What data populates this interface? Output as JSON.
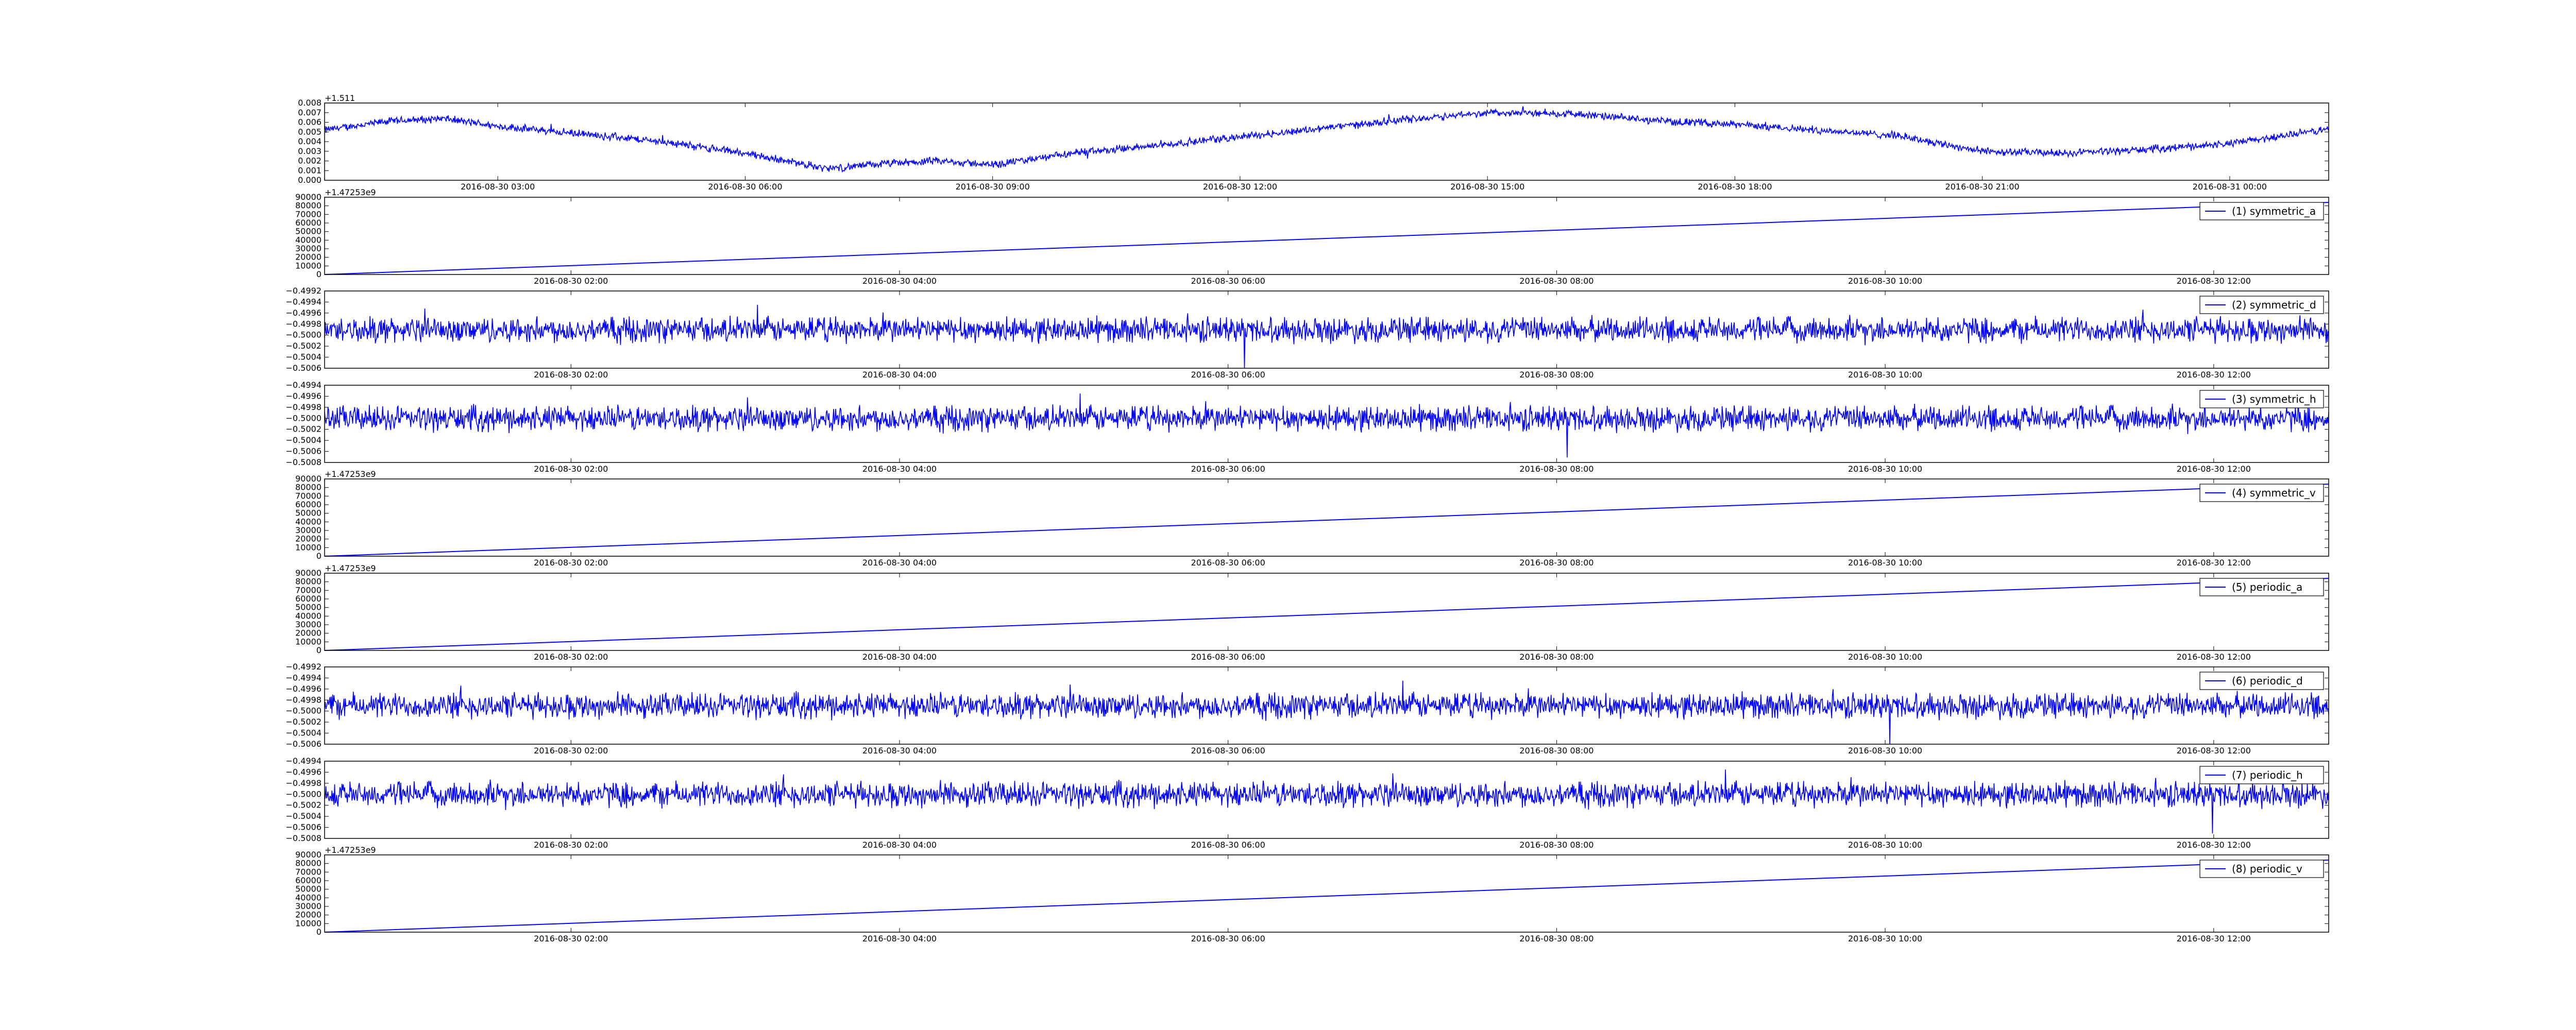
{
  "figure": {
    "background": "#ffffff"
  },
  "chart_data": [
    {
      "type": "line",
      "title": "",
      "offset_text": "+1.511",
      "legend": null,
      "series_color": "#0000ff",
      "x_ticks": [
        "2016-08-30 03:00",
        "2016-08-30 06:00",
        "2016-08-30 09:00",
        "2016-08-30 12:00",
        "2016-08-30 15:00",
        "2016-08-30 18:00",
        "2016-08-30 21:00",
        "2016-08-31 00:00"
      ],
      "xlim": [
        "2016-08-30 00:54",
        "2016-08-31 01:12"
      ],
      "y_ticks": [
        "0.000",
        "0.001",
        "0.002",
        "0.003",
        "0.004",
        "0.005",
        "0.006",
        "0.007",
        "0.008"
      ],
      "ylim": [
        0.0,
        0.008
      ],
      "noise": 0.00035,
      "series": [
        {
          "name": "",
          "x": [
            "2016-08-30 00:54",
            "2016-08-30 01:40",
            "2016-08-30 02:20",
            "2016-08-30 03:00",
            "2016-08-30 04:00",
            "2016-08-30 05:00",
            "2016-08-30 06:00",
            "2016-08-30 07:00",
            "2016-08-30 07:40",
            "2016-08-30 08:20",
            "2016-08-30 09:00",
            "2016-08-30 10:00",
            "2016-08-30 11:00",
            "2016-08-30 12:00",
            "2016-08-30 13:00",
            "2016-08-30 14:00",
            "2016-08-30 15:00",
            "2016-08-30 16:00",
            "2016-08-30 17:00",
            "2016-08-30 18:00",
            "2016-08-30 19:00",
            "2016-08-30 20:00",
            "2016-08-30 21:00",
            "2016-08-30 22:00",
            "2016-08-30 23:00",
            "2016-08-31 00:00",
            "2016-08-31 01:12"
          ],
          "y": [
            0.0052,
            0.0061,
            0.0064,
            0.0056,
            0.0048,
            0.004,
            0.0028,
            0.0012,
            0.0017,
            0.002,
            0.0016,
            0.0028,
            0.0036,
            0.0045,
            0.0054,
            0.0063,
            0.007,
            0.0069,
            0.0062,
            0.0058,
            0.0052,
            0.0046,
            0.003,
            0.0028,
            0.0032,
            0.0038,
            0.0053
          ]
        }
      ]
    },
    {
      "type": "line",
      "title": "",
      "offset_text": "+1.47253e9",
      "legend": "(1) symmetric_a",
      "series_color": "#0000ff",
      "x_ticks": [
        "2016-08-30 02:00",
        "2016-08-30 04:00",
        "2016-08-30 06:00",
        "2016-08-30 08:00",
        "2016-08-30 10:00",
        "2016-08-30 12:00"
      ],
      "xlim": [
        "2016-08-30 00:30",
        "2016-08-30 12:42"
      ],
      "y_ticks": [
        "0",
        "10000",
        "20000",
        "30000",
        "40000",
        "50000",
        "60000",
        "70000",
        "80000",
        "90000"
      ],
      "ylim": [
        0,
        90000
      ],
      "noise": 0,
      "series": [
        {
          "name": "(1) symmetric_a",
          "x": [
            "2016-08-30 00:30",
            "2016-08-30 12:42"
          ],
          "y": [
            0,
            84000
          ]
        }
      ]
    },
    {
      "type": "line",
      "title": "",
      "offset_text": "",
      "legend": "(2) symmetric_d",
      "series_color": "#0000ff",
      "x_ticks": [
        "2016-08-30 02:00",
        "2016-08-30 04:00",
        "2016-08-30 06:00",
        "2016-08-30 08:00",
        "2016-08-30 10:00",
        "2016-08-30 12:00"
      ],
      "xlim": [
        "2016-08-30 00:30",
        "2016-08-30 12:42"
      ],
      "y_ticks": [
        "−0.5006",
        "−0.5004",
        "−0.5002",
        "−0.5000",
        "−0.4998",
        "−0.4996",
        "−0.4994",
        "−0.4992"
      ],
      "ylim": [
        -0.5006,
        -0.4992
      ],
      "noise": 0.0002,
      "series": [
        {
          "name": "(2) symmetric_d",
          "x": [
            "2016-08-30 00:30",
            "2016-08-30 12:42"
          ],
          "y": [
            -0.4999,
            -0.4999
          ]
        }
      ]
    },
    {
      "type": "line",
      "title": "",
      "offset_text": "",
      "legend": "(3) symmetric_h",
      "series_color": "#0000ff",
      "x_ticks": [
        "2016-08-30 02:00",
        "2016-08-30 04:00",
        "2016-08-30 06:00",
        "2016-08-30 08:00",
        "2016-08-30 10:00",
        "2016-08-30 12:00"
      ],
      "xlim": [
        "2016-08-30 00:30",
        "2016-08-30 12:42"
      ],
      "y_ticks": [
        "−0.5008",
        "−0.5006",
        "−0.5004",
        "−0.5002",
        "−0.5000",
        "−0.4998",
        "−0.4996",
        "−0.4994"
      ],
      "ylim": [
        -0.5008,
        -0.4994
      ],
      "noise": 0.0002,
      "series": [
        {
          "name": "(3) symmetric_h",
          "x": [
            "2016-08-30 00:30",
            "2016-08-30 12:42"
          ],
          "y": [
            -0.5,
            -0.5
          ]
        }
      ]
    },
    {
      "type": "line",
      "title": "",
      "offset_text": "+1.47253e9",
      "legend": "(4) symmetric_v",
      "series_color": "#0000ff",
      "x_ticks": [
        "2016-08-30 02:00",
        "2016-08-30 04:00",
        "2016-08-30 06:00",
        "2016-08-30 08:00",
        "2016-08-30 10:00",
        "2016-08-30 12:00"
      ],
      "xlim": [
        "2016-08-30 00:30",
        "2016-08-30 12:42"
      ],
      "y_ticks": [
        "0",
        "10000",
        "20000",
        "30000",
        "40000",
        "50000",
        "60000",
        "70000",
        "80000",
        "90000"
      ],
      "ylim": [
        0,
        90000
      ],
      "noise": 0,
      "series": [
        {
          "name": "(4) symmetric_v",
          "x": [
            "2016-08-30 00:30",
            "2016-08-30 12:42"
          ],
          "y": [
            0,
            84000
          ]
        }
      ]
    },
    {
      "type": "line",
      "title": "",
      "offset_text": "+1.47253e9",
      "legend": "(5) periodic_a",
      "series_color": "#0000ff",
      "x_ticks": [
        "2016-08-30 02:00",
        "2016-08-30 04:00",
        "2016-08-30 06:00",
        "2016-08-30 08:00",
        "2016-08-30 10:00",
        "2016-08-30 12:00"
      ],
      "xlim": [
        "2016-08-30 00:30",
        "2016-08-30 12:42"
      ],
      "y_ticks": [
        "0",
        "10000",
        "20000",
        "30000",
        "40000",
        "50000",
        "60000",
        "70000",
        "80000",
        "90000"
      ],
      "ylim": [
        0,
        90000
      ],
      "noise": 0,
      "series": [
        {
          "name": "(5) periodic_a",
          "x": [
            "2016-08-30 00:30",
            "2016-08-30 12:42"
          ],
          "y": [
            0,
            84000
          ]
        }
      ]
    },
    {
      "type": "line",
      "title": "",
      "offset_text": "",
      "legend": "(6) periodic_d",
      "series_color": "#0000ff",
      "x_ticks": [
        "2016-08-30 02:00",
        "2016-08-30 04:00",
        "2016-08-30 06:00",
        "2016-08-30 08:00",
        "2016-08-30 10:00",
        "2016-08-30 12:00"
      ],
      "xlim": [
        "2016-08-30 00:30",
        "2016-08-30 12:42"
      ],
      "y_ticks": [
        "−0.5006",
        "−0.5004",
        "−0.5002",
        "−0.5000",
        "−0.4998",
        "−0.4996",
        "−0.4994",
        "−0.4992"
      ],
      "ylim": [
        -0.5006,
        -0.4992
      ],
      "noise": 0.0002,
      "series": [
        {
          "name": "(6) periodic_d",
          "x": [
            "2016-08-30 00:30",
            "2016-08-30 12:42"
          ],
          "y": [
            -0.4999,
            -0.4999
          ]
        }
      ]
    },
    {
      "type": "line",
      "title": "",
      "offset_text": "",
      "legend": "(7) periodic_h",
      "series_color": "#0000ff",
      "x_ticks": [
        "2016-08-30 02:00",
        "2016-08-30 04:00",
        "2016-08-30 06:00",
        "2016-08-30 08:00",
        "2016-08-30 10:00",
        "2016-08-30 12:00"
      ],
      "xlim": [
        "2016-08-30 00:30",
        "2016-08-30 12:42"
      ],
      "y_ticks": [
        "−0.5008",
        "−0.5006",
        "−0.5004",
        "−0.5002",
        "−0.5000",
        "−0.4998",
        "−0.4996",
        "−0.4994"
      ],
      "ylim": [
        -0.5008,
        -0.4994
      ],
      "noise": 0.0002,
      "series": [
        {
          "name": "(7) periodic_h",
          "x": [
            "2016-08-30 00:30",
            "2016-08-30 12:42"
          ],
          "y": [
            -0.5,
            -0.5
          ]
        }
      ]
    },
    {
      "type": "line",
      "title": "",
      "offset_text": "+1.47253e9",
      "legend": "(8) periodic_v",
      "series_color": "#0000ff",
      "x_ticks": [
        "2016-08-30 02:00",
        "2016-08-30 04:00",
        "2016-08-30 06:00",
        "2016-08-30 08:00",
        "2016-08-30 10:00",
        "2016-08-30 12:00"
      ],
      "xlim": [
        "2016-08-30 00:30",
        "2016-08-30 12:42"
      ],
      "y_ticks": [
        "0",
        "10000",
        "20000",
        "30000",
        "40000",
        "50000",
        "60000",
        "70000",
        "80000",
        "90000"
      ],
      "ylim": [
        0,
        90000
      ],
      "noise": 0,
      "series": [
        {
          "name": "(8) periodic_v",
          "x": [
            "2016-08-30 00:30",
            "2016-08-30 12:42"
          ],
          "y": [
            0,
            84000
          ]
        }
      ]
    }
  ]
}
